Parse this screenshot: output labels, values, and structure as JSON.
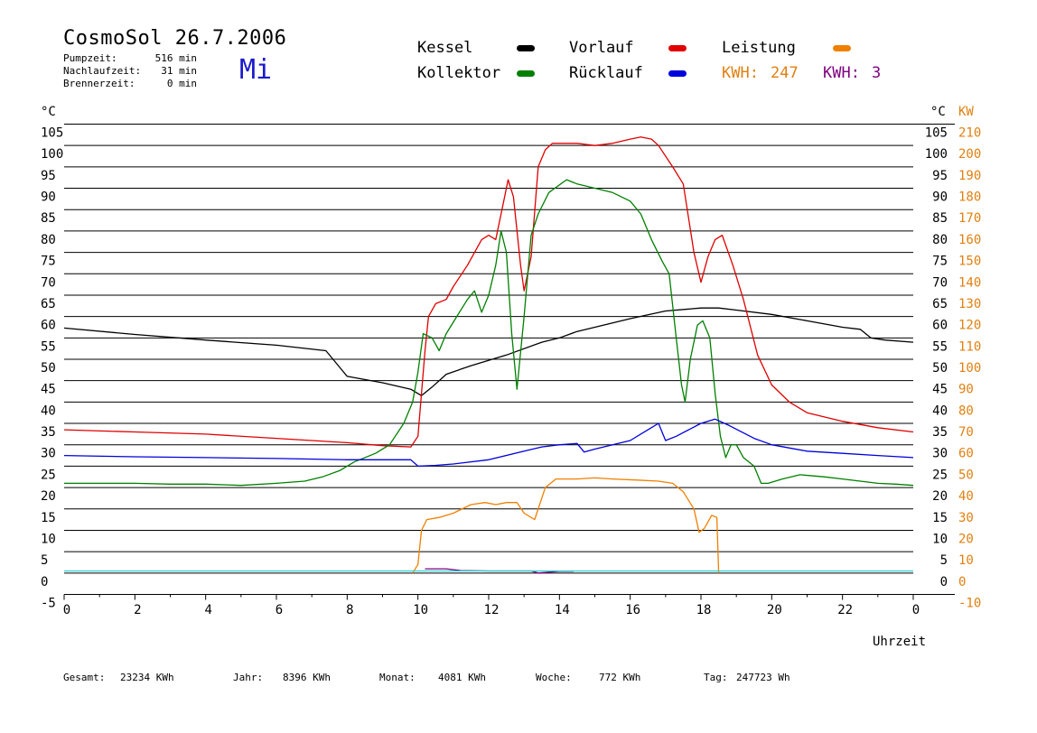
{
  "header": {
    "title": "CosmoSol 26.7.2006",
    "weekday": "Mi",
    "stats": [
      {
        "label": "Pumpzeit:",
        "value": "516 min"
      },
      {
        "label": "Nachlaufzeit:",
        "value": "31 min"
      },
      {
        "label": "Brennerzeit:",
        "value": "0 min"
      }
    ]
  },
  "legend": {
    "kessel": {
      "label": "Kessel",
      "color": "#000000"
    },
    "vorlauf": {
      "label": "Vorlauf",
      "color": "#e00000"
    },
    "leistung": {
      "label": "Leistung",
      "color": "#f08000"
    },
    "kollektor": {
      "label": "Kollektor",
      "color": "#008000"
    },
    "ruecklauf": {
      "label": "Rücklauf",
      "color": "#0000dd"
    },
    "kwh1": {
      "label": "KWH:",
      "value": "247",
      "color": "#e08010"
    },
    "kwh2": {
      "label": "KWH:",
      "value": "3",
      "color": "#800080"
    }
  },
  "footer": {
    "gesamt": {
      "label": "Gesamt:",
      "value": "23234 KWh"
    },
    "jahr": {
      "label": "Jahr:",
      "value": "8396 KWh"
    },
    "monat": {
      "label": "Monat:",
      "value": "4081 KWh"
    },
    "woche": {
      "label": "Woche:",
      "value": "772 KWh"
    },
    "tag": {
      "label": "Tag:",
      "value": "247723 Wh"
    }
  },
  "chart_data": {
    "type": "line",
    "xlabel": "Uhrzeit",
    "ylabel_left": "°C",
    "ylabel_right_c": "°C",
    "ylabel_right_kw": "KW",
    "xlim": [
      0,
      24
    ],
    "ylim": [
      -5,
      105
    ],
    "ylim_kw": [
      -10,
      210
    ],
    "x_ticks": [
      "0",
      "2",
      "4",
      "6",
      "8",
      "10",
      "12",
      "14",
      "16",
      "18",
      "20",
      "22",
      "0"
    ],
    "y_ticks": [
      -5,
      0,
      5,
      10,
      15,
      20,
      25,
      30,
      35,
      40,
      45,
      50,
      55,
      60,
      65,
      70,
      75,
      80,
      85,
      90,
      95,
      100,
      105
    ],
    "kw_ticks": [
      -10,
      0,
      10,
      20,
      30,
      40,
      50,
      60,
      70,
      80,
      90,
      100,
      110,
      120,
      130,
      140,
      150,
      160,
      170,
      180,
      190,
      200,
      210
    ],
    "grid": true,
    "series": [
      {
        "name": "Kessel",
        "color": "#000000",
        "points": [
          [
            0,
            57.3
          ],
          [
            2,
            55.8
          ],
          [
            4,
            54.5
          ],
          [
            6,
            53.3
          ],
          [
            7.4,
            52
          ],
          [
            7.6,
            50
          ],
          [
            8,
            46
          ],
          [
            9,
            44.5
          ],
          [
            9.8,
            43
          ],
          [
            10.1,
            41.5
          ],
          [
            10.4,
            43.5
          ],
          [
            10.8,
            46.5
          ],
          [
            11.5,
            48.5
          ],
          [
            12.5,
            51
          ],
          [
            13.5,
            54
          ],
          [
            14,
            55
          ],
          [
            14.5,
            56.5
          ],
          [
            15,
            57.5
          ],
          [
            16,
            59.5
          ],
          [
            17,
            61.3
          ],
          [
            18,
            62
          ],
          [
            18.5,
            62
          ],
          [
            19,
            61.5
          ],
          [
            20,
            60.5
          ],
          [
            21,
            59
          ],
          [
            22,
            57.5
          ],
          [
            22.5,
            57
          ],
          [
            22.8,
            55
          ],
          [
            23.2,
            54.5
          ],
          [
            24,
            54
          ]
        ]
      },
      {
        "name": "Vorlauf",
        "color": "#e00000",
        "points": [
          [
            0,
            33.5
          ],
          [
            2,
            33
          ],
          [
            4,
            32.5
          ],
          [
            6,
            31.5
          ],
          [
            8,
            30.5
          ],
          [
            9,
            29.8
          ],
          [
            9.8,
            29.5
          ],
          [
            10,
            32
          ],
          [
            10.2,
            52
          ],
          [
            10.3,
            60
          ],
          [
            10.5,
            63
          ],
          [
            10.8,
            64
          ],
          [
            11,
            67
          ],
          [
            11.4,
            72
          ],
          [
            11.8,
            78
          ],
          [
            12,
            79
          ],
          [
            12.2,
            78
          ],
          [
            12.4,
            86
          ],
          [
            12.55,
            92
          ],
          [
            12.7,
            88
          ],
          [
            12.9,
            72
          ],
          [
            13,
            66
          ],
          [
            13.2,
            74
          ],
          [
            13.4,
            95
          ],
          [
            13.6,
            99
          ],
          [
            13.8,
            100.5
          ],
          [
            14.5,
            100.5
          ],
          [
            15,
            100
          ],
          [
            15.5,
            100.5
          ],
          [
            16,
            101.5
          ],
          [
            16.3,
            102
          ],
          [
            16.6,
            101.5
          ],
          [
            16.8,
            100
          ],
          [
            17.2,
            95
          ],
          [
            17.5,
            91
          ],
          [
            17.8,
            75
          ],
          [
            18,
            68
          ],
          [
            18.2,
            74
          ],
          [
            18.4,
            78
          ],
          [
            18.6,
            79
          ],
          [
            18.9,
            72
          ],
          [
            19.2,
            64
          ],
          [
            19.6,
            51
          ],
          [
            20,
            44
          ],
          [
            20.5,
            40
          ],
          [
            21,
            37.5
          ],
          [
            22,
            35.5
          ],
          [
            23,
            34
          ],
          [
            24,
            33
          ]
        ]
      },
      {
        "name": "Kollektor",
        "color": "#008000",
        "points": [
          [
            0,
            21
          ],
          [
            1,
            21
          ],
          [
            2,
            21
          ],
          [
            3,
            20.8
          ],
          [
            4,
            20.8
          ],
          [
            5,
            20.5
          ],
          [
            6,
            21
          ],
          [
            6.8,
            21.5
          ],
          [
            7.3,
            22.5
          ],
          [
            7.8,
            24
          ],
          [
            8.2,
            26
          ],
          [
            8.8,
            28
          ],
          [
            9.2,
            30
          ],
          [
            9.6,
            35
          ],
          [
            9.85,
            40
          ],
          [
            10,
            47
          ],
          [
            10.15,
            56
          ],
          [
            10.4,
            55
          ],
          [
            10.6,
            52
          ],
          [
            10.8,
            56
          ],
          [
            11.1,
            60
          ],
          [
            11.4,
            64
          ],
          [
            11.6,
            66
          ],
          [
            11.8,
            61
          ],
          [
            12,
            65
          ],
          [
            12.2,
            72
          ],
          [
            12.35,
            80
          ],
          [
            12.5,
            75
          ],
          [
            12.65,
            56
          ],
          [
            12.8,
            43
          ],
          [
            13.0,
            60
          ],
          [
            13.2,
            79
          ],
          [
            13.4,
            84
          ],
          [
            13.7,
            89
          ],
          [
            14.2,
            92
          ],
          [
            14.5,
            91
          ],
          [
            15,
            90
          ],
          [
            15.5,
            89
          ],
          [
            16,
            87
          ],
          [
            16.3,
            84
          ],
          [
            16.6,
            78
          ],
          [
            16.9,
            73
          ],
          [
            17.1,
            70
          ],
          [
            17.3,
            55
          ],
          [
            17.45,
            44
          ],
          [
            17.55,
            40
          ],
          [
            17.7,
            50
          ],
          [
            17.9,
            58
          ],
          [
            18.05,
            59
          ],
          [
            18.25,
            55
          ],
          [
            18.4,
            42
          ],
          [
            18.55,
            32
          ],
          [
            18.7,
            27
          ],
          [
            18.85,
            30
          ],
          [
            19.0,
            30
          ],
          [
            19.2,
            27
          ],
          [
            19.5,
            25
          ],
          [
            19.7,
            21
          ],
          [
            19.9,
            21
          ],
          [
            20.3,
            22
          ],
          [
            20.8,
            23
          ],
          [
            21.5,
            22.5
          ],
          [
            22,
            22
          ],
          [
            22.5,
            21.5
          ],
          [
            23,
            21
          ],
          [
            23.5,
            20.8
          ],
          [
            24,
            20.5
          ]
        ]
      },
      {
        "name": "Rücklauf",
        "color": "#0000dd",
        "points": [
          [
            0,
            27.5
          ],
          [
            2,
            27.2
          ],
          [
            4,
            27
          ],
          [
            6,
            26.8
          ],
          [
            8,
            26.5
          ],
          [
            9.8,
            26.5
          ],
          [
            10,
            25
          ],
          [
            10.5,
            25.2
          ],
          [
            11,
            25.5
          ],
          [
            12,
            26.5
          ],
          [
            13,
            28.5
          ],
          [
            13.5,
            29.5
          ],
          [
            14,
            30
          ],
          [
            14.5,
            30.3
          ],
          [
            14.7,
            28.3
          ],
          [
            15,
            29
          ],
          [
            15.5,
            30
          ],
          [
            16,
            31
          ],
          [
            16.5,
            33.5
          ],
          [
            16.8,
            35
          ],
          [
            17,
            31
          ],
          [
            17.3,
            32
          ],
          [
            18,
            35
          ],
          [
            18.4,
            36
          ],
          [
            18.8,
            34.5
          ],
          [
            19.5,
            31.5
          ],
          [
            20,
            30
          ],
          [
            21,
            28.5
          ],
          [
            22,
            28
          ],
          [
            23,
            27.5
          ],
          [
            24,
            27
          ]
        ]
      },
      {
        "name": "Leistung",
        "color": "#f08000",
        "axis": "kw",
        "points": [
          [
            9.85,
            0
          ],
          [
            10.0,
            4
          ],
          [
            10.1,
            20
          ],
          [
            10.25,
            25
          ],
          [
            10.6,
            26
          ],
          [
            11,
            28
          ],
          [
            11.5,
            32
          ],
          [
            11.9,
            33
          ],
          [
            12.2,
            32
          ],
          [
            12.5,
            33
          ],
          [
            12.8,
            33
          ],
          [
            13.0,
            28
          ],
          [
            13.3,
            25
          ],
          [
            13.6,
            40
          ],
          [
            13.9,
            44
          ],
          [
            14.5,
            44
          ],
          [
            15,
            44.5
          ],
          [
            15.5,
            44
          ],
          [
            16.2,
            43.5
          ],
          [
            16.8,
            43
          ],
          [
            17.2,
            42
          ],
          [
            17.5,
            38
          ],
          [
            17.8,
            30
          ],
          [
            17.95,
            19
          ],
          [
            18.1,
            21
          ],
          [
            18.3,
            27
          ],
          [
            18.45,
            26
          ],
          [
            18.5,
            0
          ]
        ]
      },
      {
        "name": "KWH-violett",
        "color": "#800080",
        "axis": "kw",
        "points": [
          [
            10.2,
            2
          ],
          [
            10.8,
            2
          ],
          [
            11.2,
            1.2
          ],
          [
            12,
            1
          ],
          [
            13.2,
            1
          ],
          [
            13.4,
            0
          ],
          [
            14.0,
            0.8
          ],
          [
            14.4,
            0.8
          ]
        ]
      },
      {
        "name": "Null",
        "color": "#2ad0d0",
        "points": [
          [
            0,
            0.5
          ],
          [
            24,
            0.5
          ]
        ]
      }
    ]
  }
}
